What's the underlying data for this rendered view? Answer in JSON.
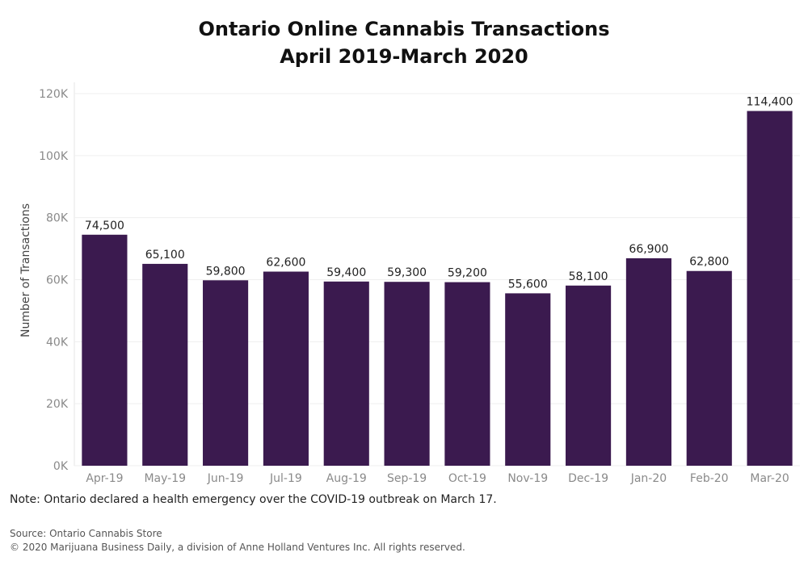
{
  "chart_data": {
    "type": "bar",
    "title": "Ontario Online Cannabis Transactions",
    "subtitle": "April 2019-March 2020",
    "xlabel": "",
    "ylabel": "Number of Transactions",
    "categories": [
      "Apr-19",
      "May-19",
      "Jun-19",
      "Jul-19",
      "Aug-19",
      "Sep-19",
      "Oct-19",
      "Nov-19",
      "Dec-19",
      "Jan-20",
      "Feb-20",
      "Mar-20"
    ],
    "values": [
      74500,
      65100,
      59800,
      62600,
      59400,
      59300,
      59200,
      55600,
      58100,
      66900,
      62800,
      114400
    ],
    "data_labels": [
      "74,500",
      "65,100",
      "59,800",
      "62,600",
      "59,400",
      "59,300",
      "59,200",
      "55,600",
      "58,100",
      "66,900",
      "62,800",
      "114,400"
    ],
    "ylim": [
      0,
      120000
    ],
    "yticks": [
      0,
      20000,
      40000,
      60000,
      80000,
      100000,
      120000
    ],
    "ytick_labels": [
      "0K",
      "20K",
      "40K",
      "60K",
      "80K",
      "100K",
      "120K"
    ],
    "grid": true,
    "legend": "none",
    "bar_color": "#3b1a4f"
  },
  "note": "Note: Ontario declared a health emergency over the COVID-19 outbreak on March 17.",
  "source": "Source: Ontario Cannabis Store",
  "copyright": "© 2020 Marijuana Business Daily, a division of Anne Holland Ventures Inc. All rights reserved."
}
